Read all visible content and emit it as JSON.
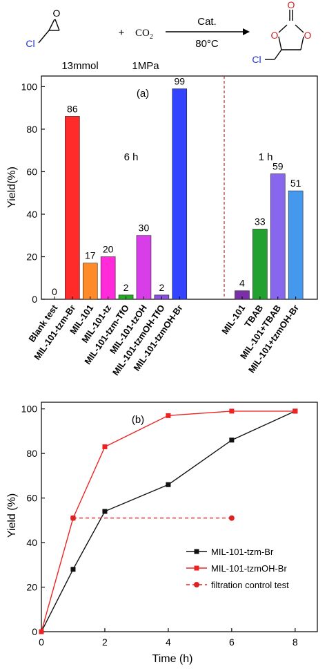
{
  "reaction": {
    "reactant_label": "Cl",
    "reactant_amount": "13mmol",
    "plus": "+",
    "co2": "CO",
    "co2_sub": "2",
    "co2_amount": "1MPa",
    "catalyst": "Cat.",
    "temperature": "80°C",
    "product_label": "Cl",
    "atom_o": "O"
  },
  "chart_data": [
    {
      "type": "bar",
      "panel_label": "(a)",
      "ylabel": "Yield(%)",
      "ylim": [
        0,
        105
      ],
      "yticks": [
        0,
        20,
        40,
        60,
        80,
        100
      ],
      "groups": [
        {
          "label": "6 h",
          "categories": [
            "Blank test",
            "MIL-101-tzm-Br",
            "MIL-101",
            "MIL-101-tz",
            "MIL-101-tzm-TfO",
            "MIL-101-tzOH",
            "MIL-101-tzmOH-TfO",
            "MIL-101-tzmOH-Br"
          ],
          "values": [
            0,
            86,
            17,
            20,
            2,
            30,
            2,
            99
          ],
          "value_labels": [
            "0",
            "86",
            "17",
            "20",
            "2",
            "30",
            "2",
            "99"
          ],
          "colors": [
            "#ffffff",
            "#ff2a2a",
            "#ff8a2a",
            "#ff2ad9",
            "#22aa22",
            "#d83ee8",
            "#8a4ee0",
            "#3344ff"
          ]
        },
        {
          "label": "1 h",
          "categories": [
            "MIL-101",
            "TBAB",
            "MIL-101+TBAB",
            "MIL-101+tzmOH-Br"
          ],
          "values": [
            4,
            33,
            59,
            51
          ],
          "value_labels": [
            "4",
            "33",
            "59",
            "51"
          ],
          "colors": [
            "#7a2ea8",
            "#22a030",
            "#8866ee",
            "#4499ee"
          ]
        }
      ]
    },
    {
      "type": "line",
      "panel_label": "(b)",
      "xlabel": "Time (h)",
      "ylabel": "Yield (%)",
      "xlim": [
        0,
        8.7
      ],
      "ylim": [
        0,
        103
      ],
      "xticks": [
        0,
        2,
        4,
        6,
        8
      ],
      "yticks": [
        0,
        20,
        40,
        60,
        80,
        100
      ],
      "series": [
        {
          "name": "MIL-101-tzm-Br",
          "color": "#111111",
          "marker": "square",
          "dash": false,
          "x": [
            0,
            1,
            2,
            4,
            6,
            8
          ],
          "y": [
            0,
            28,
            54,
            66,
            86,
            99
          ]
        },
        {
          "name": "MIL-101-tzmOH-Br",
          "color": "#ee2222",
          "marker": "square",
          "dash": false,
          "x": [
            0,
            1,
            2,
            4,
            6,
            8
          ],
          "y": [
            0,
            51,
            83,
            97,
            99,
            99
          ]
        },
        {
          "name": "filtration control test",
          "color": "#dd2222",
          "marker": "circle",
          "dash": true,
          "x": [
            1,
            6
          ],
          "y": [
            51,
            51
          ]
        }
      ]
    }
  ]
}
